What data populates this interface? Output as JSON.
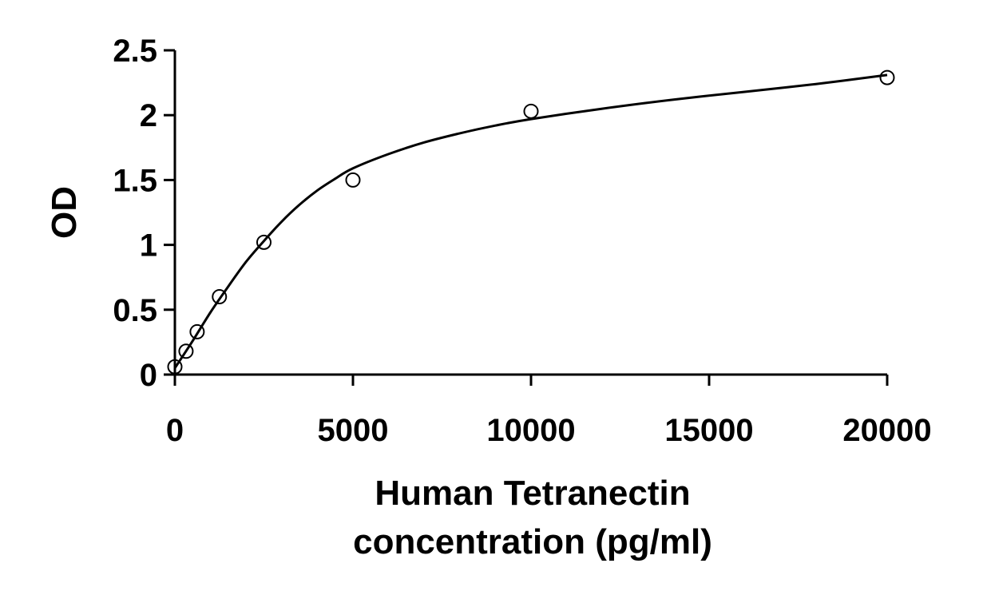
{
  "chart_data": {
    "type": "scatter",
    "title": "",
    "xlabel_lines": [
      "Human Tetranectin",
      "concentration (pg/ml)"
    ],
    "ylabel": "OD",
    "xlim": [
      0,
      20000
    ],
    "ylim": [
      0,
      2.5
    ],
    "x_ticks": [
      0,
      5000,
      10000,
      15000,
      20000
    ],
    "y_ticks": [
      0,
      0.5,
      1,
      1.5,
      2,
      2.5
    ],
    "grid": false,
    "legend": "none",
    "series": [
      {
        "marker": "open-circle",
        "x": [
          0,
          312.5,
          625,
          1250,
          2500,
          5000,
          10000,
          20000
        ],
        "y": [
          0.06,
          0.18,
          0.33,
          0.6,
          1.02,
          1.5,
          2.03,
          2.29
        ]
      }
    ],
    "fit_curve": {
      "model": "4PL",
      "x": [
        0,
        500,
        1000,
        1500,
        2000,
        2500,
        3000,
        3500,
        4000,
        4500,
        5000,
        6000,
        7000,
        8000,
        9000,
        10000,
        12000,
        14000,
        16000,
        18000,
        20000
      ],
      "y": [
        0.05,
        0.26,
        0.48,
        0.68,
        0.87,
        1.03,
        1.18,
        1.31,
        1.42,
        1.51,
        1.59,
        1.7,
        1.79,
        1.86,
        1.92,
        1.97,
        2.05,
        2.12,
        2.18,
        2.24,
        2.31
      ]
    }
  }
}
